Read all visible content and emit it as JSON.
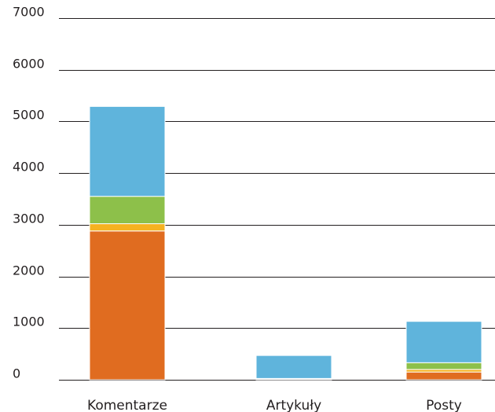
{
  "chart_data": {
    "type": "bar",
    "stacked": true,
    "title": "",
    "xlabel": "",
    "ylabel": "",
    "ylim": [
      0,
      7000
    ],
    "yticks": [
      0,
      1000,
      2000,
      3000,
      4000,
      5000,
      6000,
      7000
    ],
    "grid": true,
    "legend": "none",
    "categories": [
      "Komentarze",
      "Artykuły",
      "Posty"
    ],
    "series": [
      {
        "color": "#e06c20",
        "values": [
          2880,
          10,
          150
        ]
      },
      {
        "color": "#f5b221",
        "values": [
          140,
          5,
          50
        ]
      },
      {
        "color": "#8dc04a",
        "values": [
          530,
          10,
          130
        ]
      },
      {
        "color": "#5fb4dc",
        "values": [
          1740,
          445,
          800
        ]
      }
    ]
  }
}
